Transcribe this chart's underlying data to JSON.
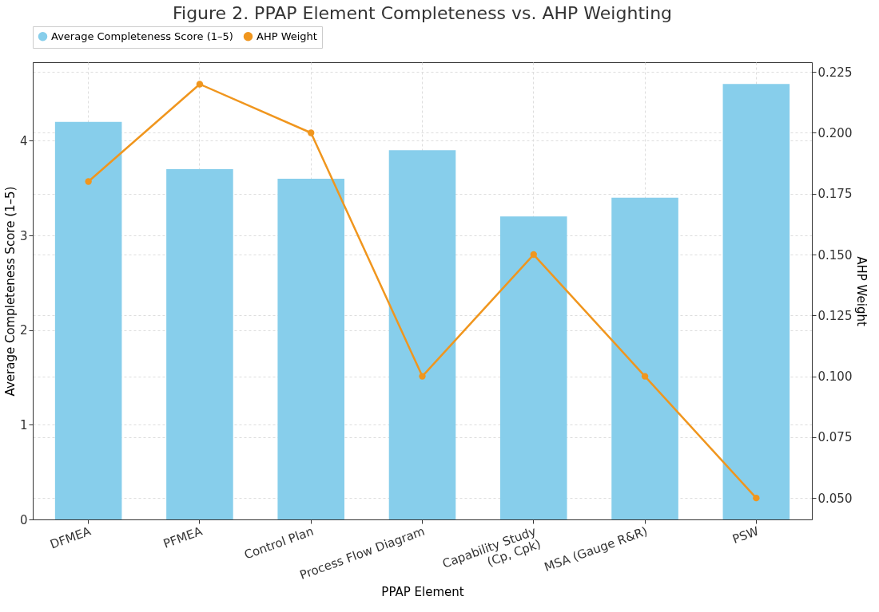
{
  "chart_data": {
    "type": "bar",
    "title": "Figure 2. PPAP Element Completeness vs. AHP Weighting",
    "xlabel": "PPAP Element",
    "ylabel": "Average Completeness Score (1–5)",
    "y2label": "AHP Weight",
    "categories": [
      "DFMEA",
      "PFMEA",
      "Control Plan",
      "Process Flow Diagram",
      "Capability Study\n(Cp, Cpk)",
      "MSA (Gauge R&R)",
      "PSW"
    ],
    "series": [
      {
        "name": "Average Completeness Score (1–5)",
        "color": "#87ceeb",
        "values": [
          4.2,
          3.7,
          3.6,
          3.9,
          3.2,
          3.4,
          4.6
        ]
      },
      {
        "name": "AHP Weight",
        "color": "#f0961e",
        "type": "line",
        "axis": "y2",
        "marker": "circle",
        "values": [
          0.18,
          0.22,
          0.2,
          0.1,
          0.15,
          0.1,
          0.05
        ]
      }
    ],
    "ylim": [
      0,
      4.83
    ],
    "yticks": [
      0,
      1,
      2,
      3,
      4
    ],
    "y2lim": [
      0.0412,
      0.229
    ],
    "y2ticks": [
      {
        "value": 0.05,
        "label": "0.050"
      },
      {
        "value": 0.075,
        "label": "0.075"
      },
      {
        "value": 0.1,
        "label": "0.100"
      },
      {
        "value": 0.125,
        "label": "0.125"
      },
      {
        "value": 0.15,
        "label": "0.150"
      },
      {
        "value": 0.175,
        "label": "0.175"
      },
      {
        "value": 0.2,
        "label": "0.200"
      },
      {
        "value": 0.225,
        "label": "0.225"
      }
    ],
    "grid": true,
    "legend": "top"
  }
}
